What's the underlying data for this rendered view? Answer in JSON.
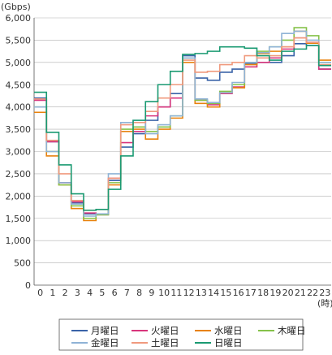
{
  "chart_data": {
    "type": "line",
    "step": true,
    "y_unit": "(Gbps)",
    "x_unit": "(時)",
    "ylim": [
      0,
      6000
    ],
    "y_ticks": [
      "0",
      "500",
      "1,000",
      "1,500",
      "2,000",
      "2,500",
      "3,000",
      "3,500",
      "4,000",
      "4,500",
      "5,000",
      "5,500",
      "6,000"
    ],
    "y_tick_values": [
      0,
      500,
      1000,
      1500,
      2000,
      2500,
      3000,
      3500,
      4000,
      4500,
      5000,
      5500,
      6000
    ],
    "x": [
      "0",
      "1",
      "2",
      "3",
      "4",
      "5",
      "6",
      "7",
      "8",
      "9",
      "10",
      "11",
      "12",
      "13",
      "14",
      "15",
      "16",
      "17",
      "18",
      "19",
      "20",
      "21",
      "22",
      "23"
    ],
    "grid": true,
    "legend_placement": "bottom",
    "series": [
      {
        "name": "月曜日",
        "color": "#3a63a8",
        "values": [
          4200,
          3220,
          2300,
          1850,
          1600,
          1580,
          2350,
          3100,
          3400,
          3700,
          4000,
          4300,
          5150,
          4650,
          4600,
          4780,
          4850,
          4980,
          5000,
          5000,
          5150,
          5420,
          5380,
          4850
        ]
      },
      {
        "name": "火曜日",
        "color": "#d8357c",
        "values": [
          4150,
          3220,
          2300,
          1870,
          1620,
          1600,
          2400,
          3200,
          3450,
          3800,
          4000,
          4200,
          5100,
          4150,
          4050,
          4300,
          4450,
          4900,
          5000,
          5100,
          5300,
          5550,
          5450,
          4850
        ]
      },
      {
        "name": "水曜日",
        "color": "#e8820e",
        "values": [
          3880,
          2900,
          2250,
          1720,
          1450,
          1580,
          2250,
          3450,
          3500,
          3280,
          3500,
          3750,
          5000,
          4080,
          4000,
          4320,
          4430,
          4950,
          5200,
          5250,
          5350,
          5700,
          5430,
          5050
        ]
      },
      {
        "name": "木曜日",
        "color": "#86c24a",
        "values": [
          4000,
          3000,
          2250,
          1780,
          1500,
          1580,
          2300,
          3500,
          3550,
          3450,
          3550,
          3800,
          5100,
          4150,
          4080,
          4350,
          4500,
          5000,
          5250,
          5350,
          5500,
          5780,
          5600,
          5000
        ]
      },
      {
        "name": "金曜日",
        "color": "#8fb3d6",
        "values": [
          4000,
          3000,
          2300,
          1820,
          1550,
          1600,
          2500,
          3650,
          3700,
          3400,
          3600,
          3800,
          5100,
          4180,
          4100,
          4320,
          4550,
          5000,
          5220,
          5350,
          5650,
          5700,
          5500,
          5000
        ]
      },
      {
        "name": "土曜日",
        "color": "#f09a7e",
        "values": [
          4180,
          3250,
          2500,
          1900,
          1680,
          1700,
          2400,
          3600,
          3650,
          3900,
          4200,
          4500,
          5050,
          4780,
          4800,
          4950,
          5000,
          5150,
          5100,
          5150,
          5350,
          5550,
          5450,
          4950
        ]
      },
      {
        "name": "日曜日",
        "color": "#1a9a72",
        "values": [
          4330,
          3430,
          2700,
          2050,
          1680,
          1700,
          2150,
          2900,
          3700,
          4120,
          4500,
          4800,
          5180,
          5200,
          5250,
          5350,
          5350,
          5320,
          5150,
          5050,
          5250,
          5300,
          5380,
          4930
        ]
      }
    ]
  }
}
